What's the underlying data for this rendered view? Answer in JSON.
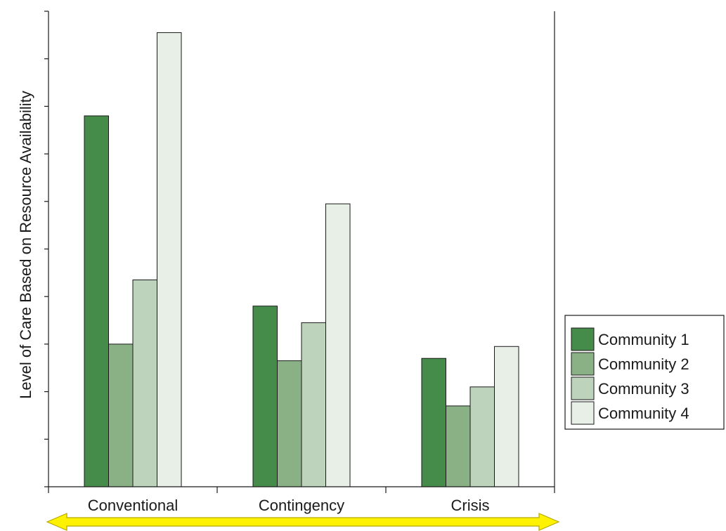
{
  "chart_data": {
    "type": "bar",
    "title": "",
    "xlabel": "",
    "ylabel": "Level of Care Based on Resource Availability",
    "categories": [
      "Conventional",
      "Contingency",
      "Crisis"
    ],
    "ylim": [
      0,
      10
    ],
    "yticks": [
      0,
      1,
      2,
      3,
      4,
      5,
      6,
      7,
      8,
      9,
      10
    ],
    "ytick_labels_shown": false,
    "grid": false,
    "legend": "right",
    "series": [
      {
        "name": "Community 1",
        "values": [
          7.8,
          3.8,
          2.7
        ],
        "color": "#458b49"
      },
      {
        "name": "Community 2",
        "values": [
          3.0,
          2.65,
          1.7
        ],
        "color": "#8ab185"
      },
      {
        "name": "Community 3",
        "values": [
          4.35,
          3.45,
          2.1
        ],
        "color": "#bdd3bc"
      },
      {
        "name": "Community 4",
        "values": [
          9.55,
          5.95,
          2.95
        ],
        "color": "#e7efe7"
      }
    ],
    "bar_outline_color": "#1a1a1a",
    "axis_arrow": {
      "direction": "both",
      "fill_color": "#fff200",
      "outline_color": "#b8a800"
    }
  }
}
